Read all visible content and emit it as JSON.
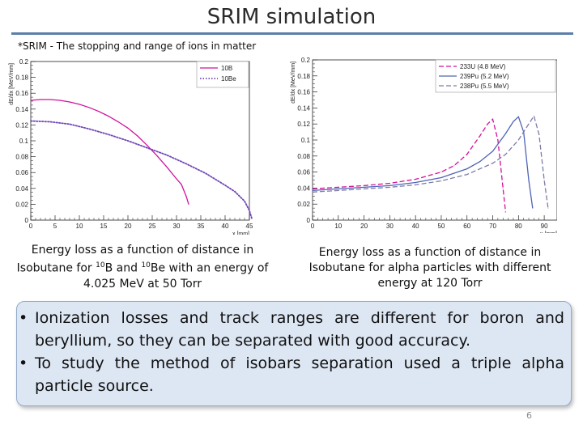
{
  "slide": {
    "title": "SRIM simulation",
    "subtitle": "*SRIM - The stopping and range of ions in matter",
    "page_number": "6",
    "rule_color": "#5b7faa"
  },
  "captions": {
    "left_pre": "Energy loss as a function of distance in Isobutane for ",
    "left_sup1": "10",
    "left_mid1": "B and ",
    "left_sup2": "10",
    "left_mid2": "Be with an energy of 4.025 MeV at 50 Torr",
    "right": "Energy loss as a function of distance in Isobutane for alpha particles with different energy at 120 Torr"
  },
  "bullets": {
    "symbol": "•",
    "items": [
      "Ionization losses and track ranges are different for boron and beryllium, so they can be separated with good accuracy.",
      "To study the method of isobars separation used a triple alpha particle source."
    ]
  },
  "chart_data": [
    {
      "type": "line",
      "ylabel": "dE/dx [MeV/mm]",
      "xlabel": "x [mm]",
      "xlim": [
        0,
        45
      ],
      "ylim": [
        0,
        0.2
      ],
      "xticks": [
        "0",
        "5",
        "10",
        "15",
        "20",
        "25",
        "30",
        "35",
        "40",
        "45"
      ],
      "yticks": [
        "0",
        "0.02",
        "0.04",
        "0.06",
        "0.08",
        "0.1",
        "0.12",
        "0.14",
        "0.16",
        "0.18",
        "0.2"
      ],
      "legend_position": "top-right",
      "series": [
        {
          "name": "10B",
          "color": "#d0129d",
          "dash": "solid",
          "x": [
            0,
            2,
            4,
            6,
            8,
            10,
            12,
            14,
            16,
            18,
            20,
            22,
            24,
            26,
            28,
            30,
            31,
            32,
            32.5
          ],
          "y": [
            0.151,
            0.152,
            0.152,
            0.151,
            0.149,
            0.146,
            0.142,
            0.137,
            0.131,
            0.124,
            0.116,
            0.106,
            0.094,
            0.081,
            0.067,
            0.052,
            0.045,
            0.03,
            0.02
          ]
        },
        {
          "name": "10Be",
          "color": "#7046b8",
          "dash": "dotted",
          "x": [
            0,
            4,
            8,
            12,
            16,
            20,
            24,
            28,
            32,
            36,
            40,
            42,
            44,
            45,
            45.5
          ],
          "y": [
            0.125,
            0.124,
            0.121,
            0.115,
            0.108,
            0.1,
            0.091,
            0.082,
            0.071,
            0.059,
            0.044,
            0.036,
            0.024,
            0.012,
            0.002
          ]
        }
      ]
    },
    {
      "type": "line",
      "ylabel": "dE/dx [MeV/mm]",
      "xlabel": "x [mm]",
      "xlim": [
        0,
        95
      ],
      "ylim": [
        0,
        0.2
      ],
      "xticks": [
        "0",
        "10",
        "20",
        "30",
        "40",
        "50",
        "60",
        "70",
        "80",
        "90"
      ],
      "yticks": [
        "0",
        "0.02",
        "0.04",
        "0.06",
        "0.08",
        "0.1",
        "0.12",
        "0.14",
        "0.16",
        "0.18",
        "0.2"
      ],
      "legend_position": "top-right",
      "series": [
        {
          "name": "233U (4.8 MeV)",
          "color": "#d0129d",
          "dash": "dashed",
          "x": [
            0,
            10,
            20,
            30,
            40,
            50,
            55,
            60,
            65,
            68,
            70,
            72,
            74,
            75
          ],
          "y": [
            0.039,
            0.041,
            0.043,
            0.046,
            0.051,
            0.06,
            0.068,
            0.082,
            0.105,
            0.12,
            0.126,
            0.1,
            0.04,
            0.01
          ]
        },
        {
          "name": "239Pu (5.2 MeV)",
          "color": "#5063b5",
          "dash": "solid",
          "x": [
            0,
            10,
            20,
            30,
            40,
            50,
            60,
            65,
            70,
            75,
            78,
            80,
            82,
            84,
            85.5
          ],
          "y": [
            0.037,
            0.039,
            0.041,
            0.043,
            0.047,
            0.053,
            0.064,
            0.073,
            0.086,
            0.108,
            0.123,
            0.129,
            0.11,
            0.05,
            0.015
          ]
        },
        {
          "name": "238Pu (5.5 MeV)",
          "color": "#7c7ca8",
          "dash": "dashed",
          "x": [
            0,
            10,
            20,
            30,
            40,
            50,
            60,
            70,
            75,
            80,
            84,
            86,
            88,
            90,
            91.5
          ],
          "y": [
            0.035,
            0.037,
            0.039,
            0.041,
            0.044,
            0.049,
            0.057,
            0.071,
            0.082,
            0.1,
            0.12,
            0.13,
            0.107,
            0.05,
            0.015
          ]
        }
      ]
    }
  ]
}
